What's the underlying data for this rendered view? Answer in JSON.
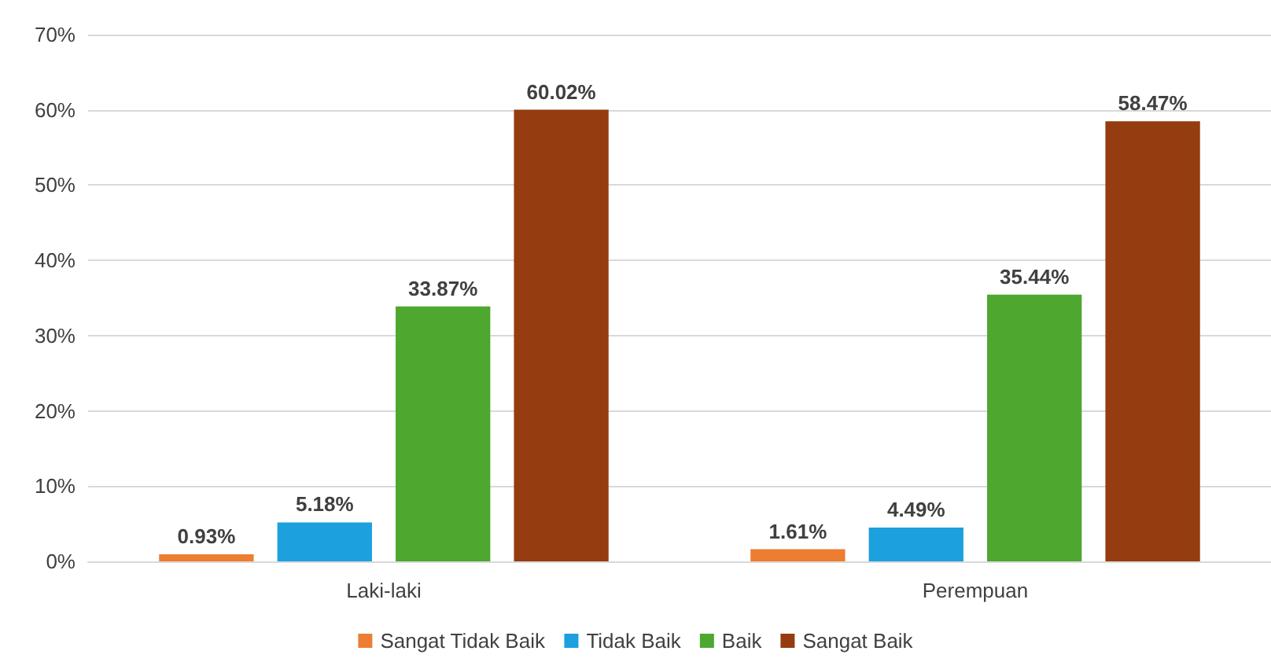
{
  "chart_data": {
    "type": "bar",
    "categories": [
      "Laki-laki",
      "Perempuan"
    ],
    "series": [
      {
        "name": "Sangat Tidak Baik",
        "color": "#ed7d31",
        "values": [
          0.93,
          1.61
        ],
        "value_labels": [
          "0.93%",
          "1.61%"
        ]
      },
      {
        "name": "Tidak Baik",
        "color": "#1ca0de",
        "values": [
          5.18,
          4.49
        ],
        "value_labels": [
          "5.18%",
          "4.49%"
        ]
      },
      {
        "name": "Baik",
        "color": "#4ea72e",
        "values": [
          33.87,
          35.44
        ],
        "value_labels": [
          "33.87%",
          "35.44%"
        ]
      },
      {
        "name": "Sangat Baik",
        "color": "#953c10",
        "values": [
          60.02,
          58.47
        ],
        "value_labels": [
          "60.02%",
          "58.47%"
        ]
      }
    ],
    "ylim": [
      0,
      70
    ],
    "yticks": [
      {
        "value": 0,
        "label": "0%"
      },
      {
        "value": 10,
        "label": "10%"
      },
      {
        "value": 20,
        "label": "20%"
      },
      {
        "value": 30,
        "label": "30%"
      },
      {
        "value": 40,
        "label": "40%"
      },
      {
        "value": 50,
        "label": "50%"
      },
      {
        "value": 60,
        "label": "60%"
      },
      {
        "value": 70,
        "label": "70%"
      }
    ],
    "grid": "y",
    "legend": "bottom"
  }
}
